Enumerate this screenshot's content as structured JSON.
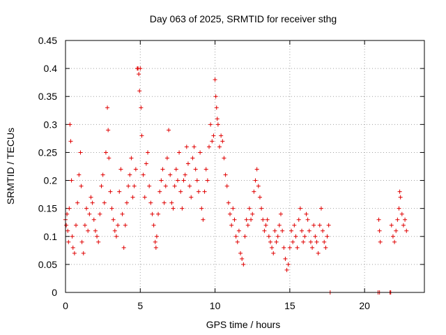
{
  "chart_data": {
    "type": "scatter",
    "title": "Day 063 of 2025, SRMTID for receiver sthg",
    "xlabel": "GPS time / hours",
    "ylabel": "SRMTID / TECUs",
    "xlim": [
      0,
      24
    ],
    "ylim": [
      0,
      0.45
    ],
    "x_ticks": [
      0,
      5,
      10,
      15,
      20
    ],
    "x_tick_labels": [
      "0",
      "5",
      "10",
      "15",
      "20"
    ],
    "y_ticks": [
      0,
      0.05,
      0.1,
      0.15,
      0.2,
      0.25,
      0.3,
      0.35,
      0.4,
      0.45
    ],
    "y_tick_labels": [
      "0",
      "0.05",
      "0.1",
      "0.15",
      "0.2",
      "0.25",
      "0.3",
      "0.35",
      "0.4",
      "0.45"
    ],
    "grid": true,
    "marker": "+",
    "marker_color": "#e00000",
    "series": [
      {
        "name": "SRMTID",
        "points": [
          [
            0.0,
            0.13
          ],
          [
            0.05,
            0.12
          ],
          [
            0.1,
            0.14
          ],
          [
            0.15,
            0.11
          ],
          [
            0.2,
            0.09
          ],
          [
            0.25,
            0.15
          ],
          [
            0.3,
            0.3
          ],
          [
            0.35,
            0.27
          ],
          [
            0.4,
            0.2
          ],
          [
            0.45,
            0.1
          ],
          [
            0.5,
            0.08
          ],
          [
            0.6,
            0.07
          ],
          [
            0.7,
            0.12
          ],
          [
            0.8,
            0.16
          ],
          [
            0.9,
            0.21
          ],
          [
            1.0,
            0.25
          ],
          [
            1.05,
            0.19
          ],
          [
            1.1,
            0.09
          ],
          [
            1.2,
            0.07
          ],
          [
            1.3,
            0.12
          ],
          [
            1.4,
            0.15
          ],
          [
            1.5,
            0.11
          ],
          [
            1.6,
            0.14
          ],
          [
            1.7,
            0.17
          ],
          [
            1.8,
            0.16
          ],
          [
            1.9,
            0.13
          ],
          [
            2.0,
            0.11
          ],
          [
            2.1,
            0.1
          ],
          [
            2.2,
            0.09
          ],
          [
            2.3,
            0.14
          ],
          [
            2.4,
            0.19
          ],
          [
            2.5,
            0.21
          ],
          [
            2.6,
            0.16
          ],
          [
            2.7,
            0.25
          ],
          [
            2.8,
            0.33
          ],
          [
            2.85,
            0.29
          ],
          [
            2.9,
            0.24
          ],
          [
            3.0,
            0.18
          ],
          [
            3.1,
            0.15
          ],
          [
            3.2,
            0.13
          ],
          [
            3.3,
            0.11
          ],
          [
            3.4,
            0.1
          ],
          [
            3.5,
            0.12
          ],
          [
            3.6,
            0.18
          ],
          [
            3.7,
            0.22
          ],
          [
            3.8,
            0.14
          ],
          [
            3.9,
            0.08
          ],
          [
            4.0,
            0.12
          ],
          [
            4.1,
            0.16
          ],
          [
            4.2,
            0.19
          ],
          [
            4.3,
            0.21
          ],
          [
            4.4,
            0.24
          ],
          [
            4.5,
            0.17
          ],
          [
            4.6,
            0.19
          ],
          [
            4.7,
            0.22
          ],
          [
            4.8,
            0.4
          ],
          [
            4.85,
            0.4
          ],
          [
            4.9,
            0.39
          ],
          [
            4.95,
            0.36
          ],
          [
            5.0,
            0.4
          ],
          [
            5.05,
            0.33
          ],
          [
            5.1,
            0.28
          ],
          [
            5.2,
            0.21
          ],
          [
            5.3,
            0.17
          ],
          [
            5.4,
            0.23
          ],
          [
            5.5,
            0.25
          ],
          [
            5.6,
            0.19
          ],
          [
            5.7,
            0.16
          ],
          [
            5.8,
            0.14
          ],
          [
            5.9,
            0.12
          ],
          [
            6.0,
            0.09
          ],
          [
            6.05,
            0.08
          ],
          [
            6.1,
            0.1
          ],
          [
            6.2,
            0.14
          ],
          [
            6.3,
            0.18
          ],
          [
            6.4,
            0.2
          ],
          [
            6.5,
            0.22
          ],
          [
            6.6,
            0.16
          ],
          [
            6.7,
            0.19
          ],
          [
            6.8,
            0.24
          ],
          [
            6.9,
            0.29
          ],
          [
            7.0,
            0.21
          ],
          [
            7.1,
            0.16
          ],
          [
            7.2,
            0.15
          ],
          [
            7.3,
            0.19
          ],
          [
            7.4,
            0.22
          ],
          [
            7.5,
            0.2
          ],
          [
            7.6,
            0.25
          ],
          [
            7.7,
            0.18
          ],
          [
            7.8,
            0.15
          ],
          [
            7.9,
            0.2
          ],
          [
            8.0,
            0.21
          ],
          [
            8.1,
            0.26
          ],
          [
            8.2,
            0.23
          ],
          [
            8.3,
            0.19
          ],
          [
            8.4,
            0.17
          ],
          [
            8.5,
            0.24
          ],
          [
            8.6,
            0.26
          ],
          [
            8.7,
            0.22
          ],
          [
            8.8,
            0.2
          ],
          [
            8.9,
            0.18
          ],
          [
            9.0,
            0.25
          ],
          [
            9.1,
            0.15
          ],
          [
            9.2,
            0.13
          ],
          [
            9.3,
            0.18
          ],
          [
            9.4,
            0.22
          ],
          [
            9.5,
            0.2
          ],
          [
            9.6,
            0.26
          ],
          [
            9.7,
            0.3
          ],
          [
            9.8,
            0.27
          ],
          [
            9.9,
            0.28
          ],
          [
            10.0,
            0.38
          ],
          [
            10.05,
            0.35
          ],
          [
            10.1,
            0.33
          ],
          [
            10.15,
            0.31
          ],
          [
            10.2,
            0.3
          ],
          [
            10.3,
            0.26
          ],
          [
            10.4,
            0.28
          ],
          [
            10.5,
            0.27
          ],
          [
            10.6,
            0.24
          ],
          [
            10.7,
            0.21
          ],
          [
            10.8,
            0.19
          ],
          [
            10.9,
            0.16
          ],
          [
            11.0,
            0.14
          ],
          [
            11.1,
            0.12
          ],
          [
            11.2,
            0.15
          ],
          [
            11.3,
            0.13
          ],
          [
            11.4,
            0.1
          ],
          [
            11.5,
            0.09
          ],
          [
            11.6,
            0.11
          ],
          [
            11.7,
            0.07
          ],
          [
            11.8,
            0.06
          ],
          [
            11.9,
            0.05
          ],
          [
            12.0,
            0.1
          ],
          [
            12.1,
            0.13
          ],
          [
            12.2,
            0.12
          ],
          [
            12.3,
            0.15
          ],
          [
            12.4,
            0.13
          ],
          [
            12.5,
            0.14
          ],
          [
            12.6,
            0.18
          ],
          [
            12.7,
            0.2
          ],
          [
            12.8,
            0.22
          ],
          [
            12.9,
            0.19
          ],
          [
            13.0,
            0.17
          ],
          [
            13.1,
            0.15
          ],
          [
            13.2,
            0.13
          ],
          [
            13.3,
            0.11
          ],
          [
            13.4,
            0.12
          ],
          [
            13.5,
            0.13
          ],
          [
            13.6,
            0.1
          ],
          [
            13.7,
            0.09
          ],
          [
            13.8,
            0.08
          ],
          [
            13.9,
            0.07
          ],
          [
            14.0,
            0.11
          ],
          [
            14.1,
            0.09
          ],
          [
            14.2,
            0.1
          ],
          [
            14.3,
            0.12
          ],
          [
            14.4,
            0.14
          ],
          [
            14.5,
            0.11
          ],
          [
            14.6,
            0.08
          ],
          [
            14.7,
            0.06
          ],
          [
            14.8,
            0.04
          ],
          [
            14.9,
            0.05
          ],
          [
            15.0,
            0.08
          ],
          [
            15.1,
            0.11
          ],
          [
            15.2,
            0.09
          ],
          [
            15.3,
            0.12
          ],
          [
            15.4,
            0.1
          ],
          [
            15.5,
            0.08
          ],
          [
            15.6,
            0.13
          ],
          [
            15.7,
            0.15
          ],
          [
            15.8,
            0.11
          ],
          [
            15.9,
            0.09
          ],
          [
            16.0,
            0.1
          ],
          [
            16.1,
            0.14
          ],
          [
            16.2,
            0.13
          ],
          [
            16.3,
            0.11
          ],
          [
            16.4,
            0.09
          ],
          [
            16.5,
            0.08
          ],
          [
            16.6,
            0.12
          ],
          [
            16.7,
            0.1
          ],
          [
            16.8,
            0.09
          ],
          [
            16.9,
            0.07
          ],
          [
            17.0,
            0.12
          ],
          [
            17.1,
            0.15
          ],
          [
            17.2,
            0.11
          ],
          [
            17.3,
            0.09
          ],
          [
            17.4,
            0.08
          ],
          [
            17.5,
            0.1
          ],
          [
            17.6,
            0.12
          ],
          [
            17.7,
            0.0
          ],
          [
            20.9,
            0.0
          ],
          [
            21.0,
            0.0
          ],
          [
            20.95,
            0.13
          ],
          [
            21.0,
            0.11
          ],
          [
            21.05,
            0.09
          ],
          [
            21.7,
            0.0
          ],
          [
            21.75,
            0.0
          ],
          [
            21.8,
            0.12
          ],
          [
            21.9,
            0.1
          ],
          [
            22.0,
            0.09
          ],
          [
            22.1,
            0.11
          ],
          [
            22.2,
            0.13
          ],
          [
            22.3,
            0.15
          ],
          [
            22.35,
            0.18
          ],
          [
            22.4,
            0.17
          ],
          [
            22.5,
            0.14
          ],
          [
            22.6,
            0.12
          ],
          [
            22.7,
            0.13
          ],
          [
            22.8,
            0.11
          ]
        ]
      }
    ]
  }
}
